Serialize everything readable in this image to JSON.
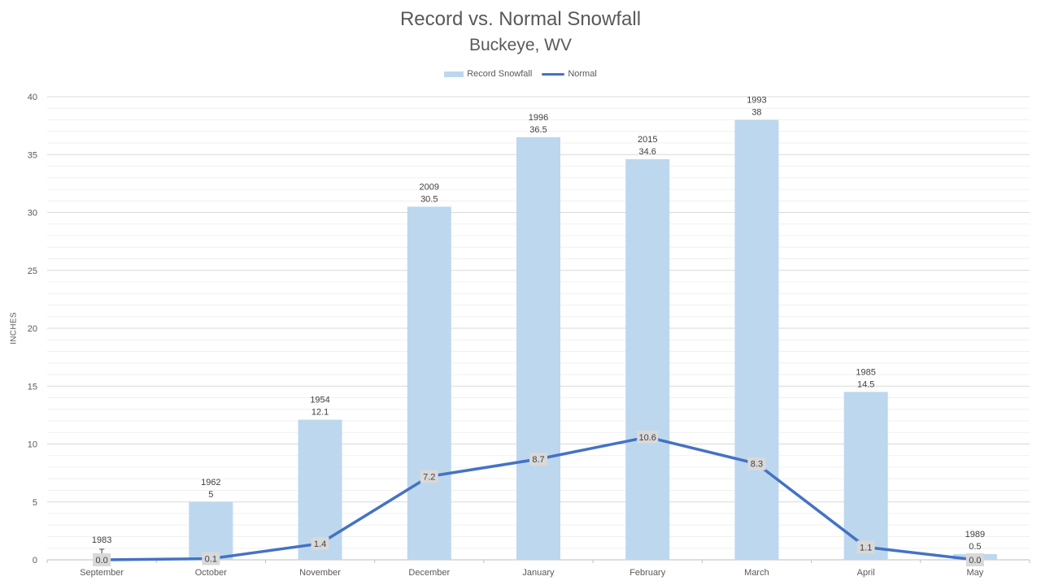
{
  "chart_data": {
    "type": "bar",
    "title": "Record vs. Normal Snowfall",
    "subtitle": "Buckeye, WV",
    "xlabel": "",
    "ylabel": "INCHES",
    "ylim": [
      0,
      40
    ],
    "yticks": [
      0,
      5,
      10,
      15,
      20,
      25,
      30,
      35,
      40
    ],
    "grid": true,
    "legend_position": "top",
    "categories": [
      "September",
      "October",
      "November",
      "December",
      "January",
      "February",
      "March",
      "April",
      "May"
    ],
    "series": [
      {
        "name": "Record Snowfall",
        "type": "bar",
        "color": "#bdd7ee",
        "values": [
          0,
          5,
          12.1,
          30.5,
          36.5,
          34.6,
          38,
          14.5,
          0.5
        ],
        "value_labels": [
          "T",
          "5",
          "12.1",
          "30.5",
          "36.5",
          "34.6",
          "38",
          "14.5",
          "0.5"
        ],
        "years": [
          "1983",
          "1962",
          "1954",
          "2009",
          "1996",
          "2015",
          "1993",
          "1985",
          "1989"
        ]
      },
      {
        "name": "Normal",
        "type": "line",
        "color": "#4472c4",
        "values": [
          0.0,
          0.1,
          1.4,
          7.2,
          8.7,
          10.6,
          8.3,
          1.1,
          0.0
        ],
        "value_labels": [
          "0.0",
          "0.1",
          "1.4",
          "7.2",
          "8.7",
          "10.6",
          "8.3",
          "1.1",
          "0.0"
        ]
      }
    ]
  }
}
